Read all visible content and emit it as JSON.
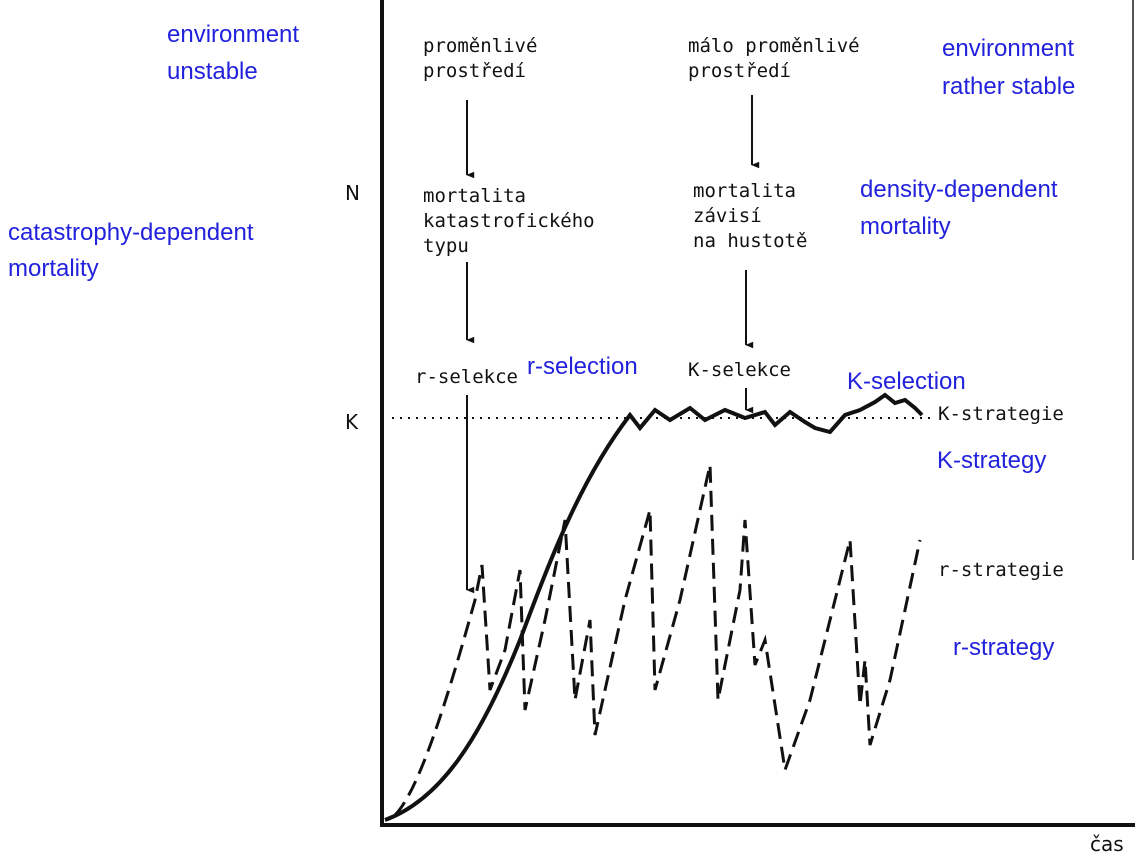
{
  "axis": {
    "n": "N",
    "k": "K",
    "time": "čas"
  },
  "czech_labels": [
    {
      "lines": [
        "proměnlivé",
        "prostředí"
      ]
    },
    {
      "lines": [
        "málo proměnlivé",
        "prostředí"
      ]
    },
    {
      "lines": [
        "mortalita",
        "katastrofického",
        "typu"
      ]
    },
    {
      "lines": [
        "mortalita",
        "závisí",
        "na hustotě"
      ]
    },
    {
      "lines": [
        "r-selekce"
      ]
    },
    {
      "lines": [
        "K-selekce"
      ]
    },
    {
      "lines": [
        "K-strategie"
      ]
    },
    {
      "lines": [
        "r-strategie"
      ]
    }
  ],
  "english_labels": [
    {
      "lines": [
        "environment",
        "unstable"
      ]
    },
    {
      "lines": [
        "environment",
        "rather stable"
      ]
    },
    {
      "lines": [
        "density-dependent",
        "mortality"
      ]
    },
    {
      "lines": [
        "catastrophy-dependent",
        "mortality"
      ]
    },
    {
      "lines": [
        "r-selection"
      ]
    },
    {
      "lines": [
        "K-selection"
      ]
    },
    {
      "lines": [
        "K-strategy"
      ]
    },
    {
      "lines": [
        "r-strategy"
      ]
    }
  ]
}
